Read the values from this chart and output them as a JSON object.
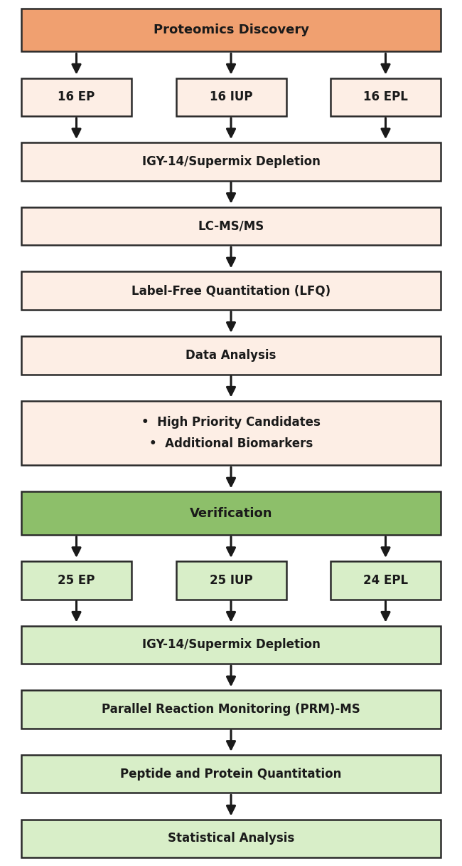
{
  "fig_width": 6.5,
  "fig_height": 12.16,
  "bg_color": "#ffffff",
  "orange_header_fill": "#F0A070",
  "orange_header_edge": "#2a2a2a",
  "orange_box_fill": "#FDEEE5",
  "orange_box_edge": "#2a2a2a",
  "green_header_fill": "#8DBF6A",
  "green_header_edge": "#2a2a2a",
  "green_box_fill": "#D8EEC8",
  "green_box_edge": "#2a2a2a",
  "text_color": "#1a1a1a",
  "arrow_color": "#1a1a1a",
  "discovery_title": "Proteomics Discovery",
  "discovery_samples": [
    "16 EP",
    "16 IUP",
    "16 EPL"
  ],
  "discovery_steps": [
    "IGY-14/Supermix Depletion",
    "LC-MS/MS",
    "Label-Free Quantitation (LFQ)",
    "Data Analysis"
  ],
  "discovery_bullets": [
    "High Priority Candidates",
    "Additional Biomarkers"
  ],
  "verification_title": "Verification",
  "verification_samples": [
    "25 EP",
    "25 IUP",
    "24 EPL"
  ],
  "verification_steps": [
    "IGY-14/Supermix Depletion",
    "Parallel Reaction Monitoring (PRM)-MS",
    "Peptide and Protein Quantitation",
    "Statistical Analysis"
  ]
}
